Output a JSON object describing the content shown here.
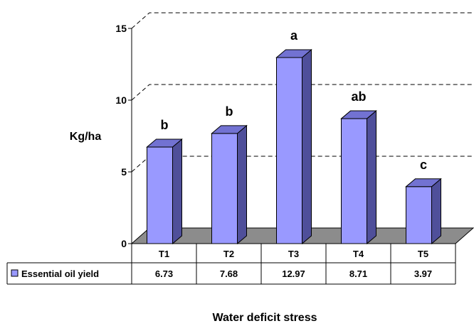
{
  "chart_data": {
    "type": "bar",
    "categories": [
      "T1",
      "T2",
      "T3",
      "T4",
      "T5"
    ],
    "series": [
      {
        "name": "Essential oil yield",
        "values": [
          6.73,
          7.68,
          12.97,
          8.71,
          3.97
        ]
      }
    ],
    "value_labels": [
      "6.73",
      "7.68",
      "12.97",
      "8.71",
      "3.97"
    ],
    "significance_letters": [
      "b",
      "b",
      "a",
      "ab",
      "c"
    ],
    "ylabel": "Kg/ha",
    "xlabel": "Water deficit stress",
    "ylim": [
      0,
      15
    ],
    "yticks": [
      0,
      5,
      10,
      15
    ],
    "grid": true,
    "style": "3d-column-with-data-table",
    "colors": {
      "bar_front": "#9999ff",
      "bar_side": "#4f4f9a",
      "bar_top": "#7272d2",
      "floor": "#8c8c8c",
      "grid": "#000000"
    }
  }
}
